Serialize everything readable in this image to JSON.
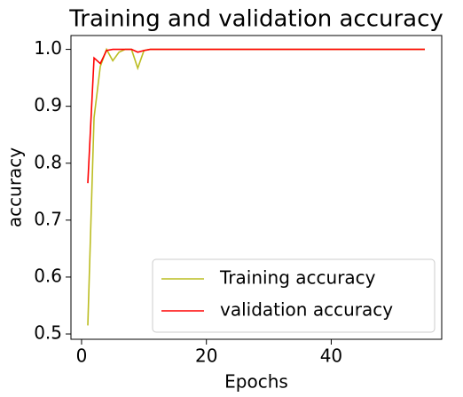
{
  "chart_data": {
    "type": "line",
    "title": "Training and validation accuracy",
    "xlabel": "Epochs",
    "ylabel": "accuracy",
    "x": [
      1,
      2,
      3,
      4,
      5,
      6,
      7,
      8,
      9,
      10,
      11,
      12,
      13,
      14,
      15,
      16,
      17,
      18,
      19,
      20,
      21,
      22,
      23,
      24,
      25,
      26,
      27,
      28,
      29,
      30,
      31,
      32,
      33,
      34,
      35,
      36,
      37,
      38,
      39,
      40,
      41,
      42,
      43,
      44,
      45,
      46,
      47,
      48,
      49,
      50,
      51,
      52,
      53,
      54,
      55
    ],
    "series": [
      {
        "name": "Training accuracy",
        "color": "#bcbd22",
        "values": [
          0.515,
          0.88,
          0.97,
          1.0,
          0.98,
          0.995,
          1.0,
          1.0,
          0.967,
          0.998,
          1.0,
          1.0,
          1.0,
          1.0,
          1.0,
          1.0,
          1.0,
          1.0,
          1.0,
          1.0,
          1.0,
          1.0,
          1.0,
          1.0,
          1.0,
          1.0,
          1.0,
          1.0,
          1.0,
          1.0,
          1.0,
          1.0,
          1.0,
          1.0,
          1.0,
          1.0,
          1.0,
          1.0,
          1.0,
          1.0,
          1.0,
          1.0,
          1.0,
          1.0,
          1.0,
          1.0,
          1.0,
          1.0,
          1.0,
          1.0,
          1.0,
          1.0,
          1.0,
          1.0,
          1.0
        ]
      },
      {
        "name": "validation accuracy",
        "color": "#ff0000",
        "values": [
          0.765,
          0.985,
          0.975,
          0.998,
          1.0,
          1.0,
          1.0,
          1.0,
          0.995,
          0.998,
          1.0,
          1.0,
          1.0,
          1.0,
          1.0,
          1.0,
          1.0,
          1.0,
          1.0,
          1.0,
          1.0,
          1.0,
          1.0,
          1.0,
          1.0,
          1.0,
          1.0,
          1.0,
          1.0,
          1.0,
          1.0,
          1.0,
          1.0,
          1.0,
          1.0,
          1.0,
          1.0,
          1.0,
          1.0,
          1.0,
          1.0,
          1.0,
          1.0,
          1.0,
          1.0,
          1.0,
          1.0,
          1.0,
          1.0,
          1.0,
          1.0,
          1.0,
          1.0,
          1.0,
          1.0
        ]
      }
    ],
    "xlim": [
      -1.7,
      57.7
    ],
    "xticks": [
      0,
      20,
      40
    ],
    "ylim": [
      0.4907,
      1.0243
    ],
    "yticks": [
      {
        "value": 0.5,
        "label": "0.5"
      },
      {
        "value": 0.6,
        "label": "0.6"
      },
      {
        "value": 0.7,
        "label": "0.7"
      },
      {
        "value": 0.8,
        "label": "0.8"
      },
      {
        "value": 0.9,
        "label": "0.9"
      },
      {
        "value": 1.0,
        "label": "1.0"
      }
    ],
    "legend": "lower right",
    "grid": false
  }
}
